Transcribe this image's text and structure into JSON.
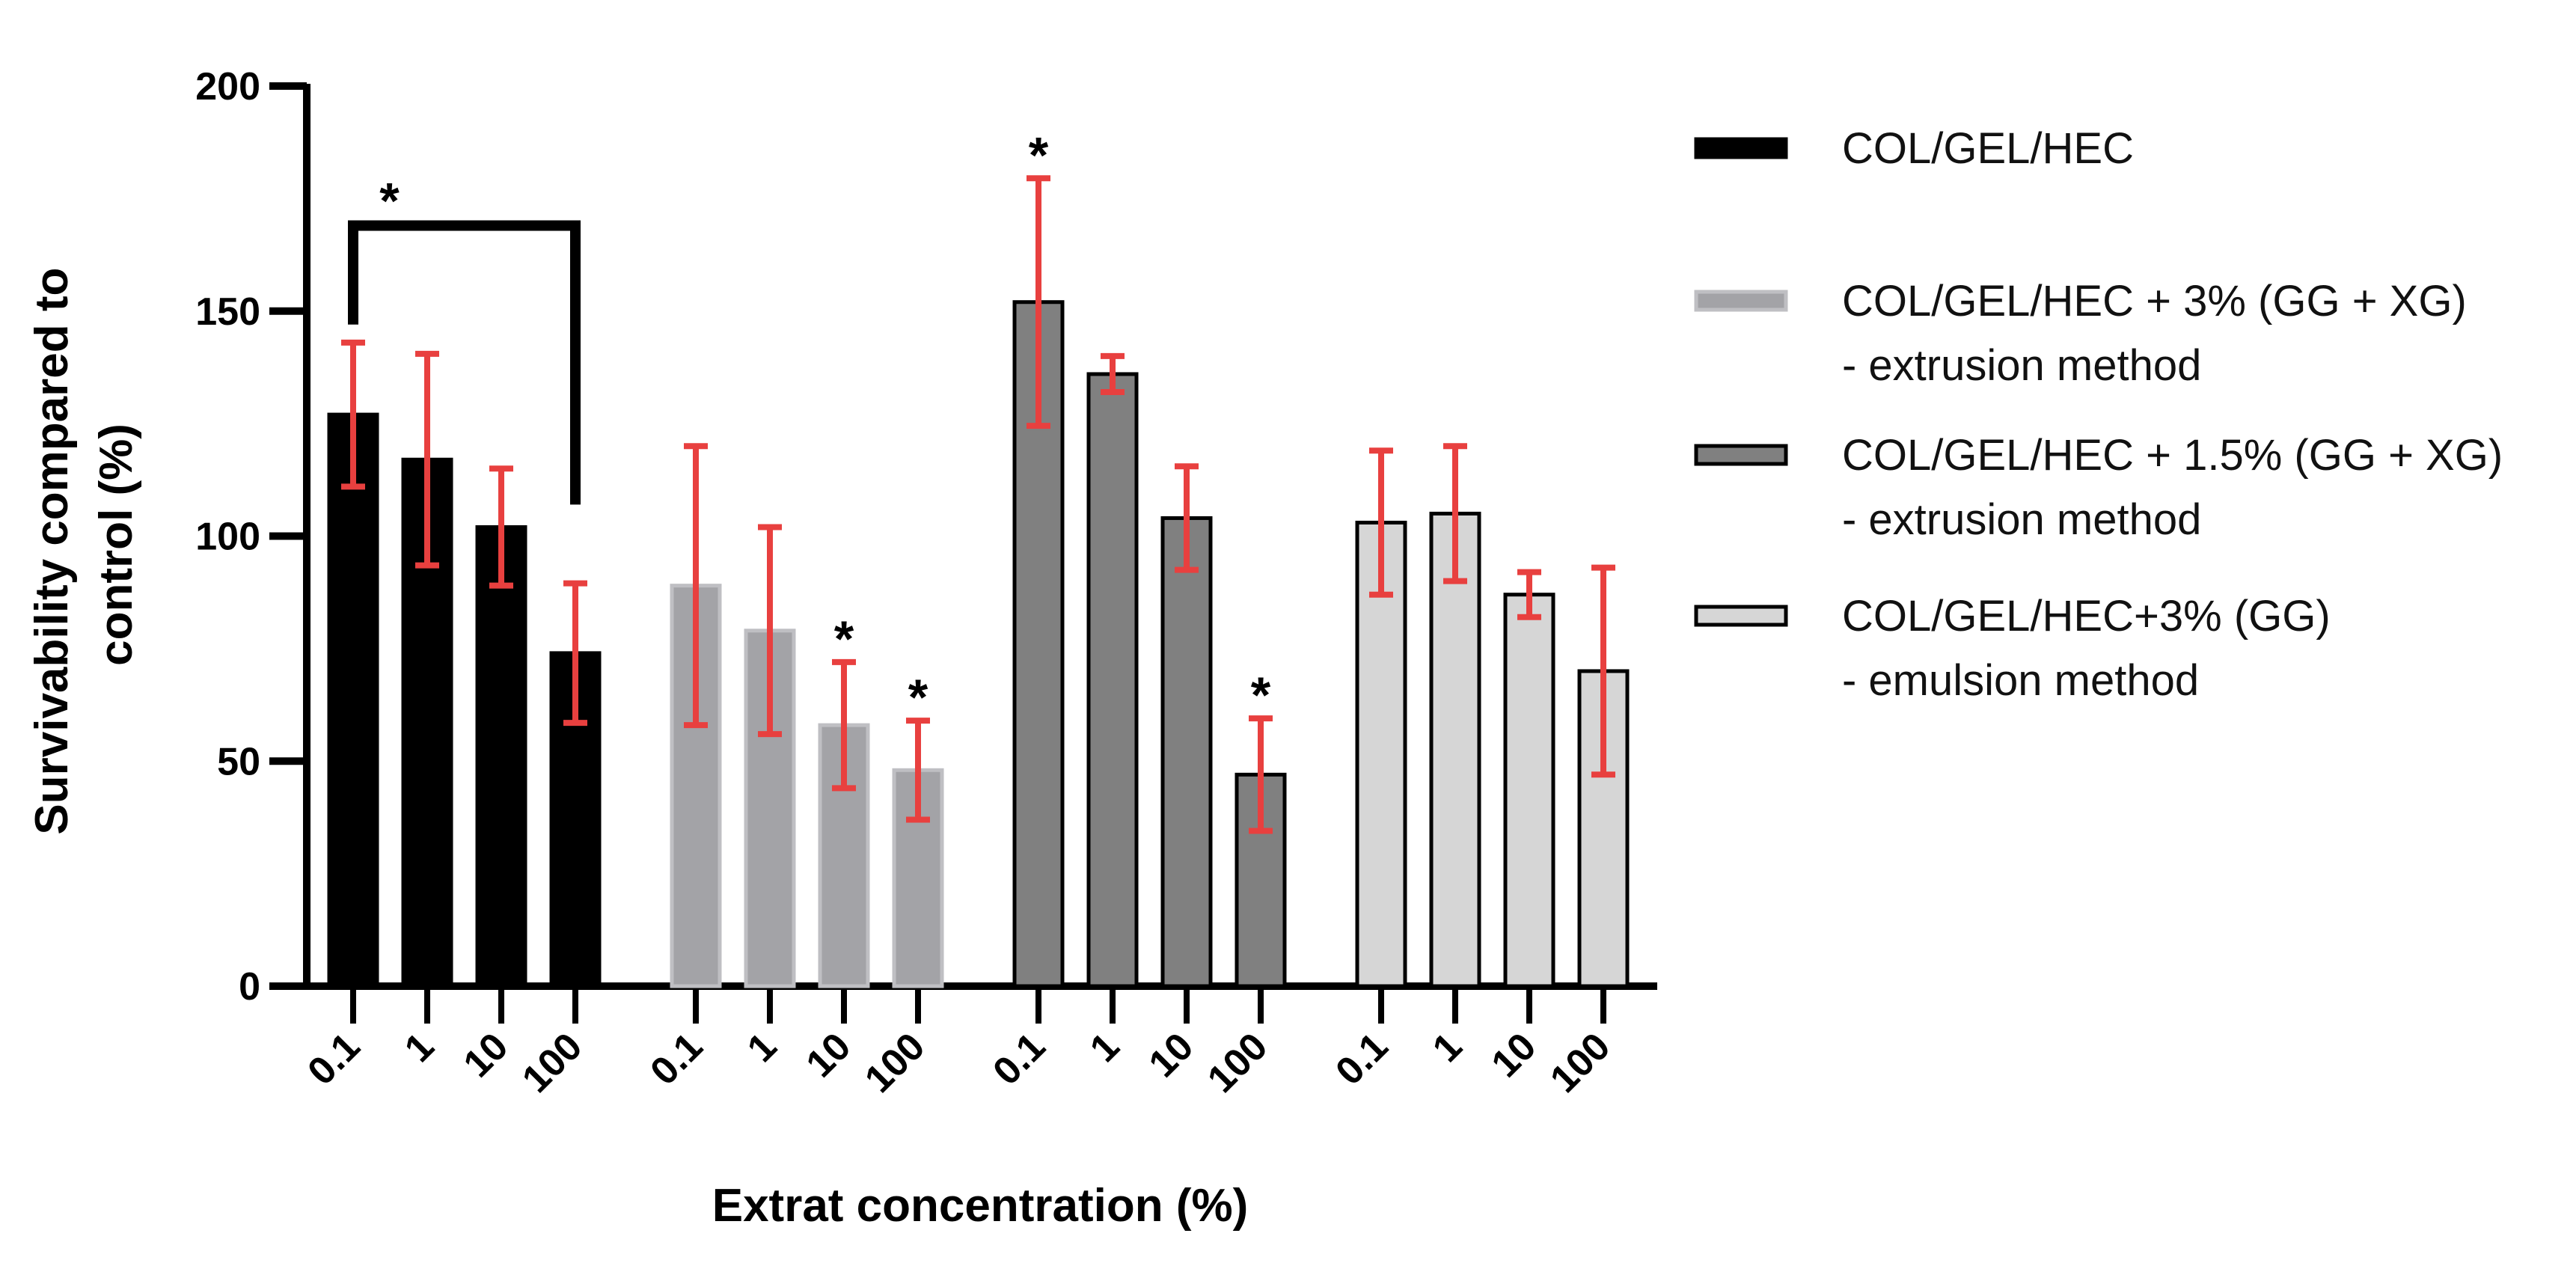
{
  "chart_data": {
    "type": "bar",
    "title": "",
    "xlabel": "Extrat concentration (%)",
    "ylabel_lines": [
      "Survivability compared to",
      "control (%)"
    ],
    "ylim": [
      0,
      200
    ],
    "yticks": [
      0,
      50,
      100,
      150,
      200
    ],
    "categories": [
      "0.1",
      "1",
      "10",
      "100"
    ],
    "error_bar_color": "#e8403f",
    "series": [
      {
        "name": "COL/GEL/HEC",
        "legend_lines": [
          "COL/GEL/HEC"
        ],
        "fill": "#000000",
        "stroke": "#000000",
        "values": [
          127,
          117,
          102,
          74
        ],
        "errors": [
          16,
          23.5,
          13,
          15.5
        ],
        "significant": [
          false,
          false,
          false,
          false
        ]
      },
      {
        "name": "COL/GEL/HEC + 3% (GG + XG) - extrusion method",
        "legend_lines": [
          "COL/GEL/HEC + 3% (GG + XG)",
          "- extrusion method"
        ],
        "fill": "#a3a3a7",
        "stroke": "#bfbfc3",
        "values": [
          89,
          79,
          58,
          48
        ],
        "errors": [
          31,
          23,
          14,
          11
        ],
        "significant": [
          false,
          false,
          true,
          true
        ]
      },
      {
        "name": "COL/GEL/HEC + 1.5% (GG + XG) - extrusion method",
        "legend_lines": [
          "COL/GEL/HEC + 1.5% (GG + XG)",
          "- extrusion method"
        ],
        "fill": "#808080",
        "stroke": "#000000",
        "values": [
          152,
          136,
          104,
          47
        ],
        "errors": [
          27.5,
          4,
          11.5,
          12.5
        ],
        "significant": [
          true,
          false,
          false,
          true
        ]
      },
      {
        "name": "COL/GEL/HEC+3% (GG) - emulsion method",
        "legend_lines": [
          "COL/GEL/HEC+3% (GG)",
          "- emulsion method"
        ],
        "fill": "#d6d6d6",
        "stroke": "#000000",
        "values": [
          103,
          105,
          87,
          70
        ],
        "errors": [
          16,
          15,
          5,
          23
        ],
        "significant": [
          false,
          false,
          false,
          false
        ]
      }
    ],
    "bracket": {
      "series_index": 0,
      "from_category": 0,
      "to_category": 3,
      "level": 169,
      "left_end": 147,
      "right_end": 107,
      "label": "*"
    }
  }
}
